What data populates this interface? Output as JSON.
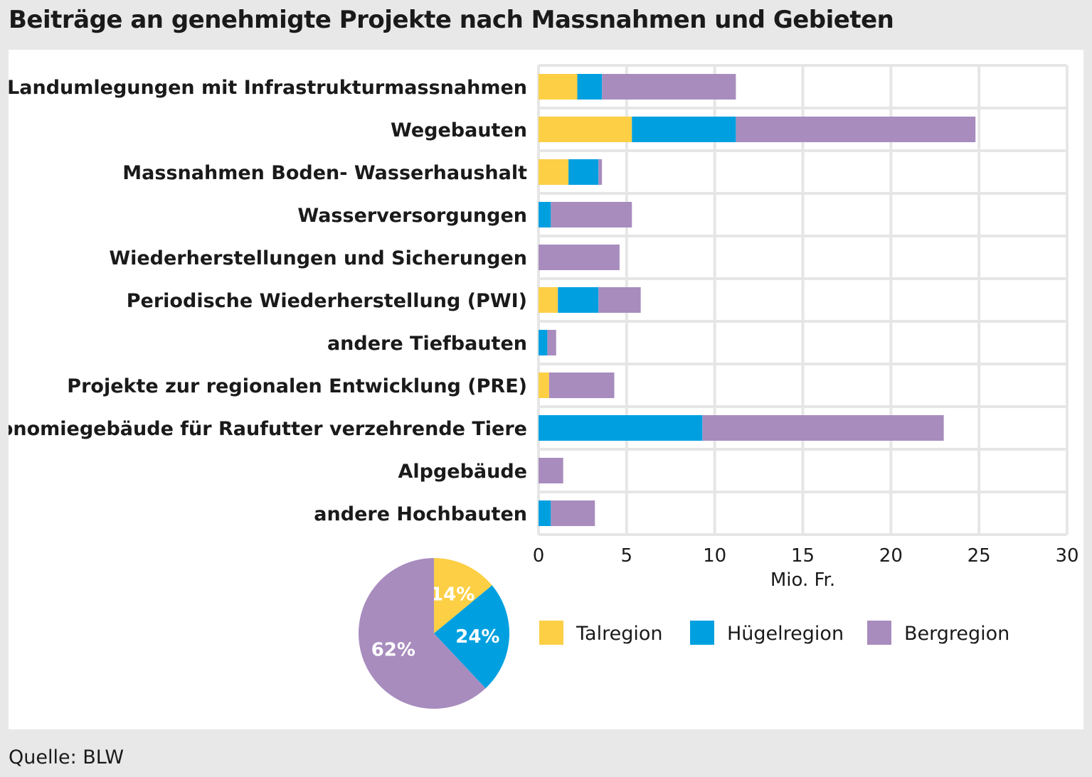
{
  "title": "Beiträge an genehmigte Projekte nach Massnahmen und Gebieten",
  "source": "Quelle: BLW",
  "colors": {
    "Talregion": "#fccf45",
    "Hügelregion": "#00a0e0",
    "Bergregion": "#a88cbe",
    "grid": "#e6e6e6"
  },
  "chart_data": [
    {
      "type": "bar",
      "orientation": "horizontal",
      "stacked": true,
      "categories": [
        "Landumlegungen mit Infrastrukturmassnahmen",
        "Wegebauten",
        "Massnahmen Boden- Wasserhaushalt",
        "Wasserversorgungen",
        "Wiederherstellungen und Sicherungen",
        "Periodische Wiederherstellung (PWI)",
        "andere Tiefbauten",
        "Projekte zur regionalen Entwicklung (PRE)",
        "Ökonomiegebäude für Raufutter verzehrende Tiere",
        "Alpgebäude",
        "andere Hochbauten"
      ],
      "series": [
        {
          "name": "Talregion",
          "values": [
            2.2,
            5.3,
            1.7,
            0,
            0,
            1.1,
            0,
            0.6,
            0,
            0,
            0
          ]
        },
        {
          "name": "Hügelregion",
          "values": [
            1.4,
            5.9,
            1.7,
            0.7,
            0,
            2.3,
            0.5,
            0,
            9.3,
            0,
            0.7
          ]
        },
        {
          "name": "Bergregion",
          "values": [
            7.6,
            13.6,
            0.2,
            4.6,
            4.6,
            2.4,
            0.5,
            3.7,
            13.7,
            1.4,
            2.5
          ]
        }
      ],
      "xlabel": "Mio. Fr.",
      "xlim": [
        0,
        30
      ],
      "xticks": [
        "0",
        "5",
        "10",
        "15",
        "20",
        "25",
        "30"
      ],
      "grid": true,
      "legend": [
        "Talregion",
        "Hügelregion",
        "Bergregion"
      ]
    },
    {
      "type": "pie",
      "slices": [
        {
          "name": "Talregion",
          "value": 14,
          "label": "14%"
        },
        {
          "name": "Hügelregion",
          "value": 24,
          "label": "24%"
        },
        {
          "name": "Bergregion",
          "value": 62,
          "label": "62%"
        }
      ]
    }
  ]
}
